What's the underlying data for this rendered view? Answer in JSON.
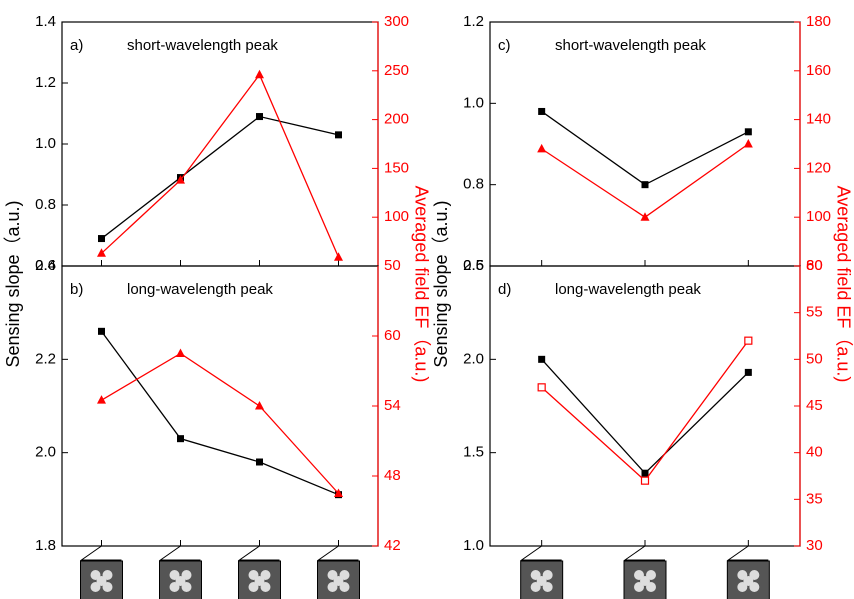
{
  "chart_data": [
    {
      "type": "line",
      "label": "a)",
      "title": "short-wavelength peak",
      "ylabel": "Sensing slope（a.u.)",
      "y2label": "Averaged field EF（a.u.)",
      "categories": [
        null,
        null,
        null,
        null
      ],
      "ylim": [
        0.6,
        1.4
      ],
      "yticks": [
        0.6,
        0.8,
        {
          "value": 1.0,
          "label": "1.0"
        },
        1.2,
        1.4
      ],
      "y2lim": [
        50,
        300
      ],
      "y2ticks": [
        50,
        100,
        150,
        200,
        250,
        300
      ],
      "series": [
        {
          "color": "#000000",
          "marker": "square",
          "values": [
            0.69,
            0.89,
            1.09,
            1.03
          ]
        },
        {
          "color": "#ff0000",
          "marker": "triangle",
          "axis": "y2",
          "values": [
            63,
            138,
            246,
            59
          ]
        }
      ]
    },
    {
      "type": "line",
      "label": "b)",
      "title": "long-wavelength peak",
      "categories": [
        null,
        null,
        null,
        null
      ],
      "ylim": [
        1.8,
        2.4
      ],
      "yticks": [
        1.8,
        {
          "value": 2.0,
          "label": "2.0"
        },
        2.2,
        2.4
      ],
      "y2lim": [
        42,
        66
      ],
      "y2ticks": [
        42,
        48,
        54,
        60
      ],
      "series": [
        {
          "color": "#000000",
          "marker": "square",
          "values": [
            2.26,
            2.03,
            1.98,
            1.91
          ]
        },
        {
          "color": "#ff0000",
          "marker": "triangle",
          "axis": "y2",
          "values": [
            54.5,
            58.5,
            54,
            46.5
          ]
        }
      ]
    },
    {
      "type": "line",
      "label": "c)",
      "title": "short-wavelength peak",
      "ylabel": "Sensing slope（a.u.)",
      "y2label": "Averaged field EF（a.u.)",
      "categories": [
        null,
        null,
        null
      ],
      "ylim": [
        0.6,
        1.2
      ],
      "yticks": [
        0.6,
        0.8,
        {
          "value": 1.0,
          "label": "1.0"
        },
        1.2
      ],
      "y2lim": [
        80,
        180
      ],
      "y2ticks": [
        80,
        100,
        120,
        140,
        160,
        180
      ],
      "series": [
        {
          "color": "#000000",
          "marker": "square",
          "values": [
            0.98,
            0.8,
            0.93
          ]
        },
        {
          "color": "#ff0000",
          "marker": "triangle",
          "axis": "y2",
          "values": [
            128,
            100,
            130
          ]
        }
      ]
    },
    {
      "type": "line",
      "label": "d)",
      "title": "long-wavelength peak",
      "categories": [
        null,
        null,
        null
      ],
      "ylim": [
        1.0,
        2.5
      ],
      "yticks": [
        {
          "value": 1.0,
          "label": "1.0"
        },
        1.5,
        {
          "value": 2.0,
          "label": "2.0"
        },
        2.5
      ],
      "y2lim": [
        30,
        60
      ],
      "y2ticks": [
        30,
        35,
        40,
        45,
        50,
        55,
        60
      ],
      "series": [
        {
          "color": "#000000",
          "marker": "square",
          "values": [
            2.0,
            1.39,
            1.93
          ]
        },
        {
          "color": "#ff0000",
          "marker": "open-square",
          "axis": "y2",
          "values": [
            47,
            37,
            52
          ]
        }
      ]
    }
  ]
}
